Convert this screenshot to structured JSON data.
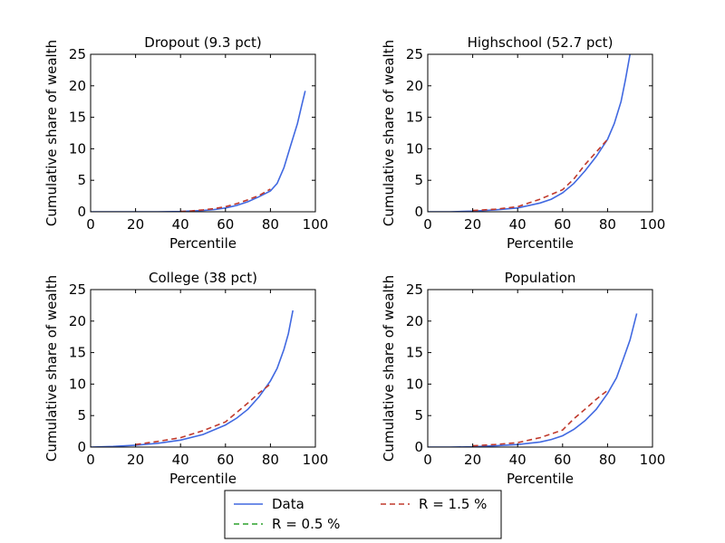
{
  "chart_data": [
    {
      "type": "line",
      "title": "Dropout (9.3 pct)",
      "xlabel": "Percentile",
      "ylabel": "Cumulative share of wealth",
      "xlim": [
        0,
        100
      ],
      "ylim": [
        0,
        25
      ],
      "xticks": [
        0,
        20,
        40,
        60,
        80,
        100
      ],
      "yticks": [
        0,
        5,
        10,
        15,
        20,
        25
      ],
      "series": [
        {
          "name": "Data",
          "color": "#4169e1",
          "dash": "solid",
          "x": [
            0,
            10,
            20,
            30,
            40,
            50,
            55,
            60,
            65,
            70,
            75,
            80,
            83,
            86,
            89,
            92,
            94,
            95.5
          ],
          "y": [
            0,
            0,
            0,
            0,
            0.05,
            0.2,
            0.35,
            0.6,
            1.0,
            1.6,
            2.4,
            3.3,
            4.5,
            7.0,
            10.5,
            14.0,
            17.0,
            19.2
          ]
        },
        {
          "name": "R = 0.5 %",
          "color": "#2ca02c",
          "dash": "dashed",
          "x": [],
          "y": []
        },
        {
          "name": "R = 1.5 %",
          "color": "#c0392b",
          "dash": "dashed",
          "x": [
            40,
            45,
            50,
            55,
            60,
            65,
            70,
            75,
            80
          ],
          "y": [
            0.05,
            0.15,
            0.3,
            0.5,
            0.8,
            1.3,
            1.9,
            2.6,
            3.6
          ]
        }
      ]
    },
    {
      "type": "line",
      "title": "Highschool (52.7 pct)",
      "xlabel": "Percentile",
      "ylabel": "Cumulative share of wealth",
      "xlim": [
        0,
        100
      ],
      "ylim": [
        0,
        25
      ],
      "xticks": [
        0,
        20,
        40,
        60,
        80,
        100
      ],
      "yticks": [
        0,
        5,
        10,
        15,
        20,
        25
      ],
      "series": [
        {
          "name": "Data",
          "color": "#4169e1",
          "dash": "solid",
          "x": [
            0,
            10,
            20,
            30,
            40,
            50,
            55,
            60,
            65,
            70,
            75,
            80,
            83,
            86,
            88,
            90
          ],
          "y": [
            0,
            0,
            0.1,
            0.3,
            0.6,
            1.4,
            2.0,
            3.0,
            4.5,
            6.5,
            8.8,
            11.5,
            14.0,
            17.5,
            21.0,
            25.0
          ]
        },
        {
          "name": "R = 0.5 %",
          "color": "#2ca02c",
          "dash": "dashed",
          "x": [],
          "y": []
        },
        {
          "name": "R = 1.5 %",
          "color": "#c0392b",
          "dash": "dashed",
          "x": [
            20,
            30,
            40,
            50,
            60,
            65,
            70,
            75,
            80
          ],
          "y": [
            0.2,
            0.4,
            0.8,
            2.0,
            3.5,
            5.2,
            7.5,
            9.5,
            11.5
          ]
        }
      ]
    },
    {
      "type": "line",
      "title": "College (38 pct)",
      "xlabel": "Percentile",
      "ylabel": "Cumulative share of wealth",
      "xlim": [
        0,
        100
      ],
      "ylim": [
        0,
        25
      ],
      "xticks": [
        0,
        20,
        40,
        60,
        80,
        100
      ],
      "yticks": [
        0,
        5,
        10,
        15,
        20,
        25
      ],
      "series": [
        {
          "name": "Data",
          "color": "#4169e1",
          "dash": "solid",
          "x": [
            0,
            10,
            20,
            30,
            40,
            50,
            60,
            65,
            70,
            75,
            80,
            83,
            86,
            88,
            90
          ],
          "y": [
            0,
            0.1,
            0.3,
            0.6,
            1.1,
            2.0,
            3.5,
            4.6,
            6.0,
            8.0,
            10.5,
            12.5,
            15.5,
            18.0,
            21.7
          ]
        },
        {
          "name": "R = 0.5 %",
          "color": "#2ca02c",
          "dash": "dashed",
          "x": [],
          "y": []
        },
        {
          "name": "R = 1.5 %",
          "color": "#c0392b",
          "dash": "dashed",
          "x": [
            20,
            30,
            40,
            50,
            60,
            65,
            70,
            75,
            80
          ],
          "y": [
            0.4,
            0.9,
            1.5,
            2.6,
            4.0,
            5.5,
            7.0,
            8.6,
            10.0
          ]
        }
      ]
    },
    {
      "type": "line",
      "title": "Population",
      "xlabel": "Percentile",
      "ylabel": "Cumulative share of wealth",
      "xlim": [
        0,
        100
      ],
      "ylim": [
        0,
        25
      ],
      "xticks": [
        0,
        20,
        40,
        60,
        80,
        100
      ],
      "yticks": [
        0,
        5,
        10,
        15,
        20,
        25
      ],
      "series": [
        {
          "name": "Data",
          "color": "#4169e1",
          "dash": "solid",
          "x": [
            0,
            10,
            20,
            30,
            40,
            50,
            55,
            60,
            65,
            70,
            75,
            80,
            84,
            87,
            90,
            93
          ],
          "y": [
            0,
            0,
            0.05,
            0.2,
            0.4,
            0.8,
            1.2,
            1.8,
            2.8,
            4.2,
            6.0,
            8.5,
            11.0,
            14.0,
            17.0,
            21.2
          ]
        },
        {
          "name": "R = 0.5 %",
          "color": "#2ca02c",
          "dash": "dashed",
          "x": [],
          "y": []
        },
        {
          "name": "R = 1.5 %",
          "color": "#c0392b",
          "dash": "dashed",
          "x": [
            20,
            30,
            40,
            50,
            60,
            65,
            70,
            75,
            80
          ],
          "y": [
            0.2,
            0.4,
            0.7,
            1.5,
            2.7,
            4.5,
            6.0,
            7.6,
            9.0
          ]
        }
      ]
    }
  ],
  "legend": {
    "placement": "bottom-center",
    "entries": [
      {
        "label": "Data",
        "color": "#4169e1",
        "dash": "solid"
      },
      {
        "label": "R = 0.5 %",
        "color": "#2ca02c",
        "dash": "dashed"
      },
      {
        "label": "R = 1.5 %",
        "color": "#c0392b",
        "dash": "dashed"
      }
    ]
  }
}
